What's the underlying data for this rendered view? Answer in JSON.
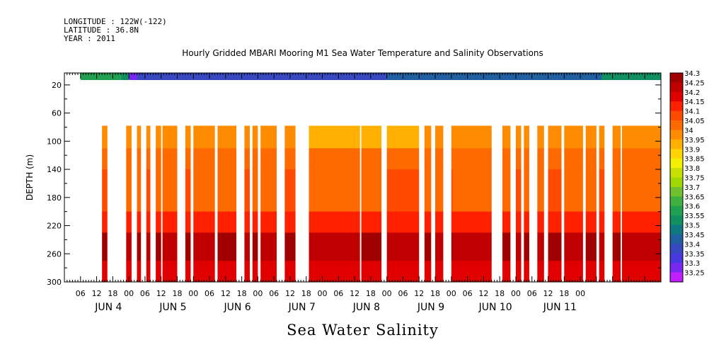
{
  "header": {
    "longitude": "LONGITUDE : 122W(-122)",
    "latitude": "LATITUDE : 36.8N",
    "year": "YEAR : 2011"
  },
  "title": "Hourly Gridded MBARI Mooring M1 Sea Water Temperature and Salinity Observations",
  "bottom_label": "Sea Water Salinity",
  "chart_data": {
    "type": "heatmap",
    "title": "Hourly Gridded MBARI Mooring M1 Sea Water Temperature and Salinity Observations",
    "variable": "Sea Water Salinity",
    "ylabel": "DEPTH (m)",
    "ylim": [
      300,
      0
    ],
    "y_ticks": [
      20,
      60,
      100,
      140,
      180,
      220,
      260,
      300
    ],
    "x_hour_ticks": [
      "06",
      "12",
      "18",
      "00",
      "06",
      "12",
      "18",
      "00",
      "06",
      "12",
      "18",
      "00",
      "06",
      "12",
      "18",
      "00",
      "06",
      "12",
      "18",
      "00",
      "06",
      "12",
      "18",
      "00",
      "06",
      "12",
      "18",
      "00",
      "06",
      "12",
      "18",
      "00"
    ],
    "x_day_labels": [
      "JUN  4",
      "JUN  5",
      "JUN  6",
      "JUN  7",
      "JUN  8",
      "JUN  9",
      "JUN 10",
      "JUN 11"
    ],
    "colorbar_levels": [
      34.3,
      34.25,
      34.2,
      34.15,
      34.1,
      34.05,
      34,
      33.95,
      33.9,
      33.85,
      33.8,
      33.75,
      33.7,
      33.65,
      33.6,
      33.55,
      33.5,
      33.45,
      33.4,
      33.35,
      33.3,
      33.25
    ],
    "colorbar_colors": [
      "#a00000",
      "#c00000",
      "#e00000",
      "#ff2000",
      "#ff4a00",
      "#ff6a00",
      "#ff8c00",
      "#ffb000",
      "#ffd400",
      "#f4f000",
      "#c8e000",
      "#a0d800",
      "#70c030",
      "#40b040",
      "#20a050",
      "#109060",
      "#107880",
      "#2060a0",
      "#3848c0",
      "#4838e0",
      "#7828f0",
      "#c020ff"
    ],
    "surface_band": [
      {
        "from_hour": 6,
        "to_hour": 21,
        "value": 33.6
      },
      {
        "from_hour": 21,
        "to_hour": 24,
        "value": 33.55
      },
      {
        "from_hour": 24,
        "to_hour": 27,
        "value": 33.3
      },
      {
        "from_hour": 27,
        "to_hour": 120,
        "value": 33.4
      },
      {
        "from_hour": 120,
        "to_hour": 200,
        "value": 33.45
      },
      {
        "from_hour": 200,
        "to_hour": 222,
        "value": 33.55
      }
    ],
    "profile_depth_top": 78,
    "profile_layers": [
      {
        "depth_from": 78,
        "depth_to": 110,
        "value": 34.0
      },
      {
        "depth_from": 110,
        "depth_to": 140,
        "value": 34.05
      },
      {
        "depth_from": 140,
        "depth_to": 200,
        "value": 34.05
      },
      {
        "depth_from": 200,
        "depth_to": 230,
        "value": 34.15
      },
      {
        "depth_from": 230,
        "depth_to": 270,
        "value": 34.25
      },
      {
        "depth_from": 270,
        "depth_to": 300,
        "value": 34.2
      }
    ],
    "data_intervals_hours": [
      [
        14,
        16
      ],
      [
        23,
        25
      ],
      [
        27,
        28.5
      ],
      [
        30.5,
        32
      ],
      [
        34,
        36
      ],
      [
        36.5,
        42
      ],
      [
        45,
        47
      ],
      [
        48,
        56
      ],
      [
        57,
        64
      ],
      [
        67,
        69
      ],
      [
        70,
        72
      ],
      [
        73,
        79
      ],
      [
        82,
        86
      ],
      [
        91,
        110
      ],
      [
        110.5,
        118
      ],
      [
        120,
        132
      ],
      [
        134,
        136.5
      ],
      [
        138,
        141
      ],
      [
        144,
        148
      ],
      [
        144.5,
        159
      ],
      [
        163,
        166
      ],
      [
        168,
        170
      ],
      [
        171,
        173
      ],
      [
        176,
        178.5
      ],
      [
        180,
        185
      ],
      [
        186,
        193
      ],
      [
        194,
        198
      ],
      [
        199,
        201
      ],
      [
        204,
        207
      ],
      [
        207.5,
        222
      ]
    ],
    "x_range_hours": [
      0,
      222
    ]
  }
}
